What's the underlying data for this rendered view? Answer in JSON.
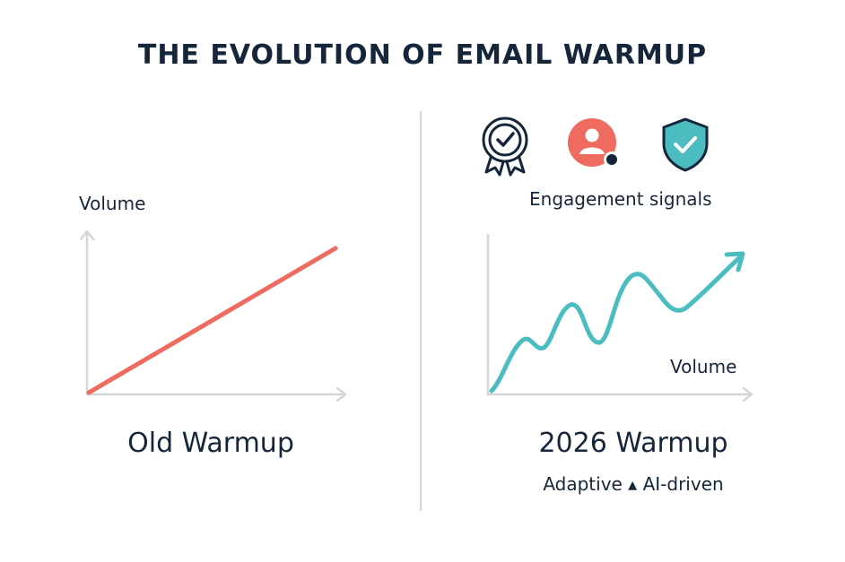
{
  "title": "THE EVOLUTION OF EMAIL WARMUP",
  "left_panel": {
    "axis_label": "Volume",
    "caption": "Old Warmup",
    "line_color": "#ef6a5f"
  },
  "right_panel": {
    "icons": [
      "award-badge-icon",
      "user-profile-icon",
      "shield-check-icon"
    ],
    "signals_label": "Engagement signals",
    "axis_label": "Volume",
    "caption": "2026 Warmup",
    "subtitle": "Adaptive ▴ AI-driven",
    "line_color": "#4bbdc1"
  },
  "colors": {
    "text": "#16263a",
    "axis": "#d4d6da",
    "red": "#ef6a5f",
    "teal": "#4bbdc1"
  }
}
